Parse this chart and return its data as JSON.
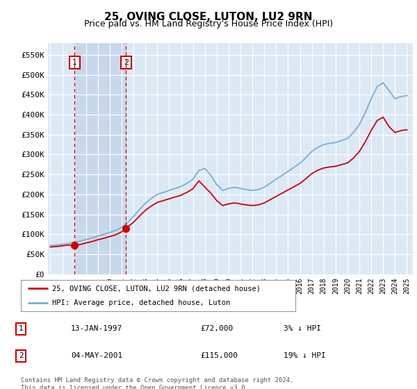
{
  "title": "25, OVING CLOSE, LUTON, LU2 9RN",
  "subtitle": "Price paid vs. HM Land Registry's House Price Index (HPI)",
  "ylabel_ticks": [
    "£0",
    "£50K",
    "£100K",
    "£150K",
    "£200K",
    "£250K",
    "£300K",
    "£350K",
    "£400K",
    "£450K",
    "£500K",
    "£550K"
  ],
  "ytick_values": [
    0,
    50000,
    100000,
    150000,
    200000,
    250000,
    300000,
    350000,
    400000,
    450000,
    500000,
    550000
  ],
  "ylim": [
    0,
    580000
  ],
  "xlim_start": 1994.8,
  "xlim_end": 2025.5,
  "background_color": "#ffffff",
  "plot_bg_color": "#dce9f5",
  "grid_color": "#ffffff",
  "transaction1_date": 1997.04,
  "transaction1_price": 72000,
  "transaction2_date": 2001.37,
  "transaction2_price": 115000,
  "legend_label_red": "25, OVING CLOSE, LUTON, LU2 9RN (detached house)",
  "legend_label_blue": "HPI: Average price, detached house, Luton",
  "annotation1_date": "13-JAN-1997",
  "annotation1_price": "£72,000",
  "annotation1_hpi": "3% ↓ HPI",
  "annotation2_date": "04-MAY-2001",
  "annotation2_price": "£115,000",
  "annotation2_hpi": "19% ↓ HPI",
  "footer": "Contains HM Land Registry data © Crown copyright and database right 2024.\nThis data is licensed under the Open Government Licence v3.0.",
  "red_line_color": "#cc0000",
  "blue_line_color": "#7aadd4",
  "marker_color": "#cc0000",
  "dashed_line_color": "#cc0000",
  "shade_color": "#c8d8ec",
  "box_edge_color": "#cc0000",
  "hpi_years": [
    1995,
    1995.5,
    1996,
    1996.5,
    1997,
    1997.5,
    1998,
    1998.5,
    1999,
    1999.5,
    2000,
    2000.5,
    2001,
    2001.5,
    2002,
    2002.5,
    2003,
    2003.5,
    2004,
    2004.5,
    2005,
    2005.5,
    2006,
    2006.5,
    2007,
    2007.5,
    2008,
    2008.5,
    2009,
    2009.5,
    2010,
    2010.5,
    2011,
    2011.5,
    2012,
    2012.5,
    2013,
    2013.5,
    2014,
    2014.5,
    2015,
    2015.5,
    2016,
    2016.5,
    2017,
    2017.5,
    2018,
    2018.5,
    2019,
    2019.5,
    2020,
    2020.5,
    2021,
    2021.5,
    2022,
    2022.5,
    2023,
    2023.5,
    2024,
    2024.5,
    2025
  ],
  "hpi_values": [
    72000,
    73000,
    75000,
    77000,
    80000,
    83000,
    87000,
    91000,
    96000,
    100000,
    105000,
    110000,
    118000,
    130000,
    145000,
    162000,
    178000,
    190000,
    200000,
    205000,
    210000,
    215000,
    220000,
    228000,
    238000,
    260000,
    265000,
    248000,
    225000,
    210000,
    215000,
    218000,
    215000,
    212000,
    210000,
    212000,
    218000,
    228000,
    238000,
    248000,
    258000,
    268000,
    278000,
    292000,
    308000,
    318000,
    325000,
    328000,
    330000,
    335000,
    340000,
    355000,
    375000,
    405000,
    440000,
    470000,
    480000,
    460000,
    440000,
    445000,
    448000
  ],
  "red_years": [
    1995,
    1995.5,
    1996,
    1996.5,
    1997.04,
    1997.5,
    1998,
    1998.5,
    1999,
    1999.5,
    2000,
    2000.5,
    2001,
    2001.37,
    2002,
    2002.5,
    2003,
    2003.5,
    2004,
    2004.5,
    2005,
    2005.5,
    2006,
    2006.5,
    2007,
    2007.5,
    2008,
    2008.5,
    2009,
    2009.5,
    2010,
    2010.5,
    2011,
    2011.5,
    2012,
    2012.5,
    2013,
    2013.5,
    2014,
    2014.5,
    2015,
    2015.5,
    2016,
    2016.5,
    2017,
    2017.5,
    2018,
    2018.5,
    2019,
    2019.5,
    2020,
    2020.5,
    2021,
    2021.5,
    2022,
    2022.5,
    2023,
    2023.5,
    2024,
    2024.5,
    2025
  ],
  "red_values": [
    68400,
    69300,
    71250,
    73150,
    72000,
    74600,
    78300,
    81900,
    86400,
    90000,
    94500,
    99000,
    106200,
    115000,
    130500,
    145800,
    160200,
    171000,
    180000,
    184500,
    189000,
    193500,
    198000,
    205200,
    214200,
    234000,
    218500,
    203200,
    184600,
    172200,
    176300,
    178800,
    176300,
    173700,
    172200,
    173700,
    178800,
    186900,
    195100,
    203200,
    211300,
    219400,
    227500,
    239400,
    252300,
    260600,
    266300,
    268800,
    270600,
    274700,
    278700,
    291000,
    307400,
    331900,
    360500,
    385100,
    393600,
    370000,
    355000,
    360000,
    362000
  ]
}
